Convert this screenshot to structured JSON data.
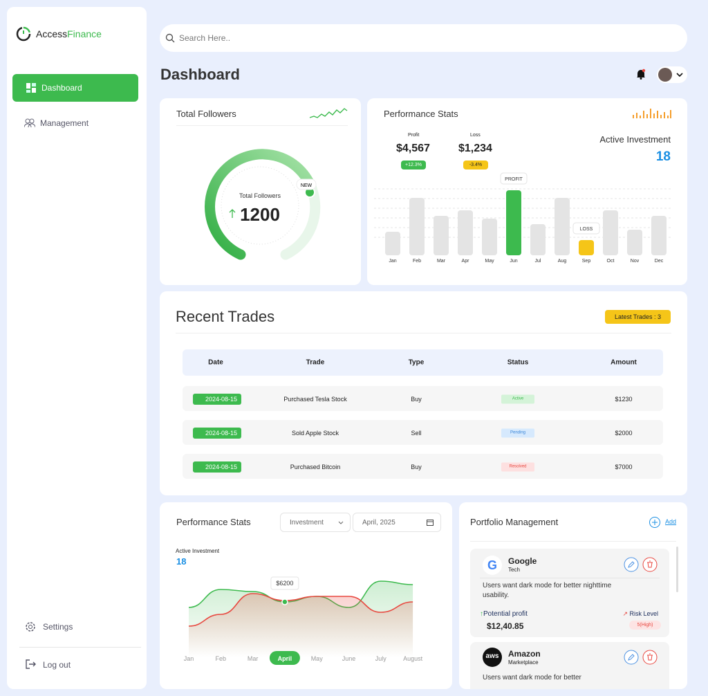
{
  "sidebar": {
    "brand": [
      "Access",
      "Finance"
    ],
    "nav": [
      "Dashboard",
      "Management"
    ],
    "bottom": [
      "Settings",
      "Log out"
    ]
  },
  "search": {
    "placeholder": "Search Here.."
  },
  "header": {
    "title": "Dashboard"
  },
  "followers": {
    "title": "Total Followers",
    "label": "Total Followers",
    "value": "1200",
    "badge": "NEW"
  },
  "performance": {
    "title": "Performance Stats",
    "profit_label": "Profit",
    "profit": "$4,567",
    "profit_change": "+12.3%",
    "loss_label": "Loss",
    "loss": "$1,234",
    "loss_change": "-3.4%",
    "active_label": "Active Investment",
    "active_value": "18",
    "chart_data": {
      "type": "bar",
      "categories": [
        "Jan",
        "Feb",
        "Mar",
        "Apr",
        "May",
        "Jun",
        "Jul",
        "Aug",
        "Sep",
        "Oct",
        "Nov",
        "Dec"
      ],
      "values": [
        34,
        83,
        57,
        65,
        53,
        94,
        45,
        83,
        22,
        65,
        37,
        57
      ],
      "colors": [
        "#e4e4e4",
        "#e4e4e4",
        "#e4e4e4",
        "#e4e4e4",
        "#e4e4e4",
        "#3dba4e",
        "#e4e4e4",
        "#e4e4e4",
        "#f5c518",
        "#e4e4e4",
        "#e4e4e4",
        "#e4e4e4"
      ],
      "ylim": [
        0,
        100
      ],
      "annotations": [
        {
          "category": "Jun",
          "text": "PROFIT"
        },
        {
          "category": "Sep",
          "text": "LOSS"
        }
      ]
    }
  },
  "trades": {
    "title": "Recent Trades",
    "badge": "Latest Trades : 3",
    "columns": [
      "Date",
      "Trade",
      "Type",
      "Status",
      "Amount"
    ],
    "rows": [
      [
        "2024-08-15",
        "Purchased Tesla Stock",
        "Buy",
        "Active",
        "$1230"
      ],
      [
        "2024-08-15",
        "Sold Apple Stock",
        "Sell",
        "Pending",
        "$2000"
      ],
      [
        "2024-08-15",
        "Purchased Bitcoin",
        "Buy",
        "Resolved",
        "$7000"
      ]
    ]
  },
  "performance2": {
    "title": "Performance Stats",
    "dropdown": "Investment",
    "date": "April, 2025",
    "active_label": "Active Investment",
    "active_value": "18",
    "selected": "April",
    "chart_data": {
      "type": "line",
      "categories": [
        "Jan",
        "Feb",
        "Mar",
        "April",
        "May",
        "June",
        "July",
        "August"
      ],
      "ylim": [
        0,
        100
      ],
      "series": [
        {
          "color": "#3dba4e",
          "values": [
            42,
            68,
            65,
            50,
            58,
            42,
            80,
            75
          ]
        },
        {
          "color": "#e8473f",
          "values": [
            15,
            32,
            62,
            52,
            58,
            58,
            35,
            50
          ]
        }
      ],
      "annotation": {
        "series": 0,
        "index": 3,
        "text": "$6200"
      }
    }
  },
  "portfolio": {
    "title": "Portfolio Management",
    "add": "Add",
    "items": [
      {
        "name": "Google",
        "sector": "Tech",
        "description": "Users want dark mode for better nighttime usability.",
        "profit_label": "Potential profit",
        "profit": "$12,40.85",
        "risk_label": "Risk Level",
        "risk": "5(High)"
      },
      {
        "name": "Amazon",
        "sector": "Marketplace",
        "description": "Users want dark mode for better"
      }
    ]
  }
}
